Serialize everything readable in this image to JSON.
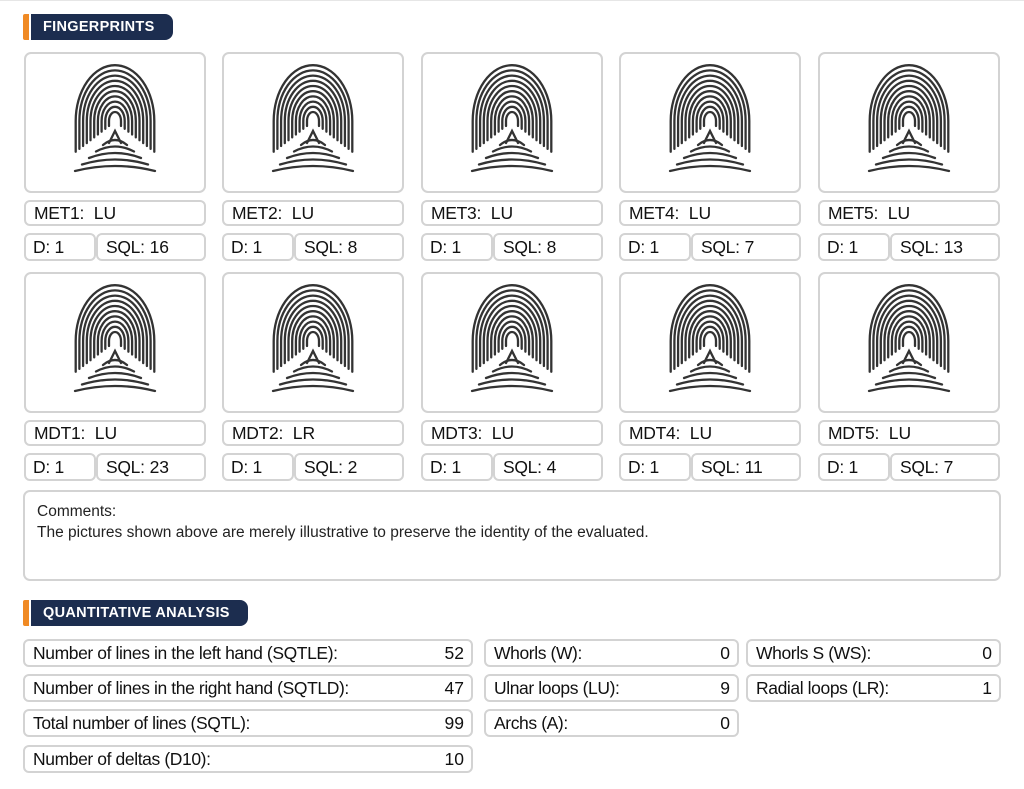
{
  "fingerprints_section": {
    "title": "FINGERPRINTS"
  },
  "fingerprints": [
    {
      "name": "MET1:",
      "pattern": "LU",
      "d": "D: 1",
      "sql_label": "SQL:",
      "sql": "16"
    },
    {
      "name": "MET2:",
      "pattern": "LU",
      "d": "D: 1",
      "sql_label": "SQL:",
      "sql": "8"
    },
    {
      "name": "MET3:",
      "pattern": "LU",
      "d": "D: 1",
      "sql_label": "SQL:",
      "sql": "8"
    },
    {
      "name": "MET4:",
      "pattern": "LU",
      "d": "D: 1",
      "sql_label": "SQL:",
      "sql": "7"
    },
    {
      "name": "MET5:",
      "pattern": "LU",
      "d": "D: 1",
      "sql_label": "SQL:",
      "sql": "13"
    },
    {
      "name": "MDT1:",
      "pattern": "LU",
      "d": "D: 1",
      "sql_label": "SQL:",
      "sql": "23"
    },
    {
      "name": "MDT2:",
      "pattern": "LR",
      "d": "D: 1",
      "sql_label": "SQL:",
      "sql": "2"
    },
    {
      "name": "MDT3:",
      "pattern": "LU",
      "d": "D: 1",
      "sql_label": "SQL:",
      "sql": "4"
    },
    {
      "name": "MDT4:",
      "pattern": "LU",
      "d": "D: 1",
      "sql_label": "SQL:",
      "sql": "11"
    },
    {
      "name": "MDT5:",
      "pattern": "LU",
      "d": "D: 1",
      "sql_label": "SQL:",
      "sql": "7"
    }
  ],
  "comments": {
    "label": "Comments:",
    "text": "The pictures shown above are merely illustrative to preserve the identity of the evaluated."
  },
  "quantitative_section": {
    "title": "QUANTITATIVE ANALYSIS"
  },
  "quantitative": {
    "sqtle": {
      "label": "Number of lines in the left hand (SQTLE):",
      "value": "52"
    },
    "sqtld": {
      "label": "Number of lines in the right hand (SQTLD):",
      "value": "47"
    },
    "sqtl": {
      "label": "Total number of lines (SQTL):",
      "value": "99"
    },
    "d10": {
      "label": "Number of deltas (D10):",
      "value": "10"
    },
    "whorls": {
      "label": "Whorls (W):",
      "value": "0"
    },
    "ulnar": {
      "label": "Ulnar loops (LU):",
      "value": "9"
    },
    "arches": {
      "label": "Archs (A):",
      "value": "0"
    },
    "whorls_s": {
      "label": "Whorls S (WS):",
      "value": "0"
    },
    "radial": {
      "label": "Radial loops (LR):",
      "value": "1"
    }
  },
  "colors": {
    "accent": "#f08a24",
    "header_bg": "#1c2d4f",
    "border": "#d3d3d3",
    "print": "#333333"
  },
  "icons": {
    "fingerprint": "fingerprint-icon"
  }
}
